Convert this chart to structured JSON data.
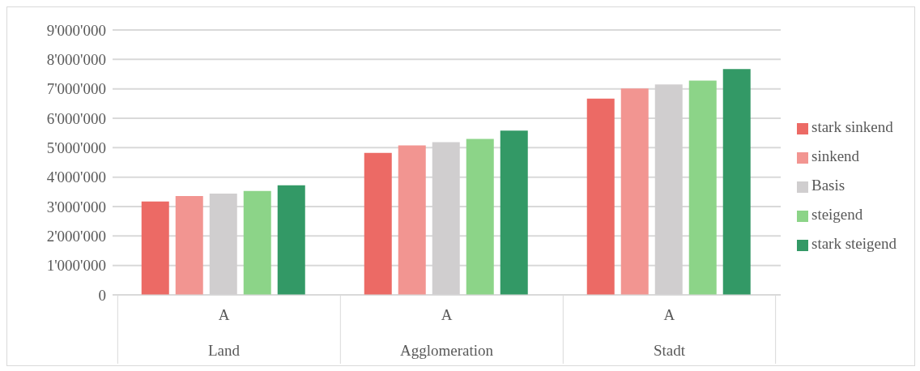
{
  "chart_data": {
    "type": "bar",
    "categories": [
      "Land",
      "Agglomeration",
      "Stadt"
    ],
    "annotations": [
      "A",
      "A",
      "A"
    ],
    "series": [
      {
        "name": "stark sinkend",
        "color": "#ec6a65",
        "values": [
          3170000,
          4820000,
          6670000
        ]
      },
      {
        "name": "sinkend",
        "color": "#f29591",
        "values": [
          3360000,
          5080000,
          7010000
        ]
      },
      {
        "name": "Basis",
        "color": "#d0cecf",
        "values": [
          3440000,
          5190000,
          7150000
        ]
      },
      {
        "name": "steigend",
        "color": "#8cd488",
        "values": [
          3530000,
          5300000,
          7280000
        ]
      },
      {
        "name": "stark steigend",
        "color": "#339966",
        "values": [
          3720000,
          5580000,
          7670000
        ]
      }
    ],
    "ylim": [
      0,
      9000000
    ],
    "yticks": [
      0,
      {
        "value": 1000000,
        "label": "1'000'000"
      },
      {
        "value": 2000000,
        "label": "2'000'000"
      },
      {
        "value": 3000000,
        "label": "3'000'000"
      },
      {
        "value": 4000000,
        "label": "4'000'000"
      },
      {
        "value": 5000000,
        "label": "5'000'000"
      },
      {
        "value": 6000000,
        "label": "6'000'000"
      },
      {
        "value": 7000000,
        "label": "7'000'000"
      },
      {
        "value": 8000000,
        "label": "8'000'000"
      },
      {
        "value": 9000000,
        "label": "9'000'000"
      }
    ],
    "grid": "y",
    "legend": "right"
  }
}
